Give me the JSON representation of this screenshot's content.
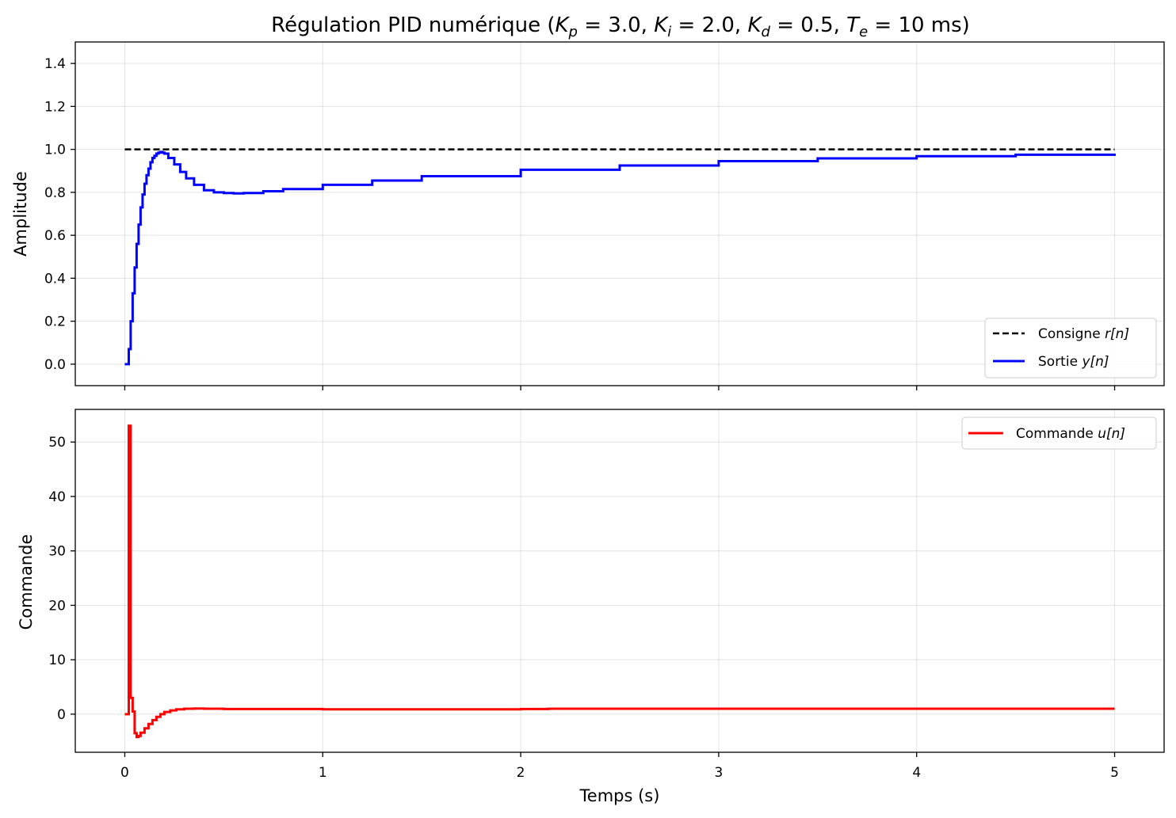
{
  "title": "Régulation PID numérique (K_p = 3.0, K_i = 2.0, K_d = 0.5, T_e = 10 ms)",
  "title_parts": {
    "prefix": "Régulation PID numérique (",
    "kp_sym": "K",
    "kp_sub": "p",
    "kp_val": " = 3.0, ",
    "ki_sym": "K",
    "ki_sub": "i",
    "ki_val": " = 2.0, ",
    "kd_sym": "K",
    "kd_sub": "d",
    "kd_val": " = 0.5, ",
    "te_sym": "T",
    "te_sub": "e",
    "te_val": " = 10 ms)"
  },
  "chart_data": [
    {
      "type": "line",
      "ylabel": "Amplitude",
      "xlim": [
        -0.25,
        5.25
      ],
      "ylim": [
        -0.1,
        1.5
      ],
      "xticks": [
        0,
        1,
        2,
        3,
        4,
        5
      ],
      "yticks": [
        "0.0",
        "0.2",
        "0.4",
        "0.6",
        "0.8",
        "1.0",
        "1.2",
        "1.4"
      ],
      "grid": true,
      "legend_position": "lower-right",
      "series": [
        {
          "name": "Consigne r[n]",
          "legend_text": "Consigne ",
          "legend_math": "r[n]",
          "color": "#000000",
          "style": "dashed",
          "x": [
            0,
            5
          ],
          "y": [
            1.0,
            1.0
          ]
        },
        {
          "name": "Sortie y[n]",
          "legend_text": "Sortie ",
          "legend_math": "y[n]",
          "color": "#0000ff",
          "style": "step",
          "x": [
            0,
            0.02,
            0.03,
            0.04,
            0.05,
            0.06,
            0.07,
            0.08,
            0.09,
            0.1,
            0.11,
            0.12,
            0.13,
            0.14,
            0.15,
            0.16,
            0.17,
            0.18,
            0.19,
            0.2,
            0.22,
            0.25,
            0.28,
            0.31,
            0.35,
            0.4,
            0.45,
            0.5,
            0.55,
            0.6,
            0.7,
            0.8,
            1.0,
            1.25,
            1.5,
            2.0,
            2.5,
            3.0,
            3.5,
            4.0,
            4.5,
            5.0
          ],
          "y": [
            0,
            0.07,
            0.2,
            0.33,
            0.45,
            0.56,
            0.65,
            0.73,
            0.79,
            0.84,
            0.88,
            0.91,
            0.94,
            0.96,
            0.97,
            0.98,
            0.985,
            0.988,
            0.985,
            0.98,
            0.96,
            0.93,
            0.895,
            0.865,
            0.835,
            0.81,
            0.8,
            0.797,
            0.795,
            0.797,
            0.805,
            0.815,
            0.835,
            0.855,
            0.875,
            0.905,
            0.925,
            0.945,
            0.958,
            0.968,
            0.975,
            0.98
          ]
        }
      ]
    },
    {
      "type": "line",
      "xlabel": "Temps (s)",
      "ylabel": "Commande",
      "xlim": [
        -0.25,
        5.25
      ],
      "ylim": [
        -7,
        56
      ],
      "xticks": [
        0,
        1,
        2,
        3,
        4,
        5
      ],
      "yticks": [
        "0",
        "10",
        "20",
        "30",
        "40",
        "50"
      ],
      "grid": true,
      "legend_position": "upper-right",
      "series": [
        {
          "name": "Commande u[n]",
          "legend_text": "Commande ",
          "legend_math": "u[n]",
          "color": "#ff0000",
          "style": "step",
          "x": [
            0,
            0.02,
            0.03,
            0.04,
            0.05,
            0.06,
            0.07,
            0.08,
            0.1,
            0.12,
            0.14,
            0.16,
            0.18,
            0.2,
            0.23,
            0.26,
            0.3,
            0.35,
            0.4,
            0.5,
            1.0,
            1.5,
            2.0,
            2.14,
            3.0,
            4.0,
            5.0
          ],
          "y": [
            0,
            53,
            3,
            0.5,
            -3.5,
            -4.2,
            -4.0,
            -3.4,
            -2.6,
            -1.8,
            -1.1,
            -0.5,
            0.0,
            0.4,
            0.7,
            0.9,
            1.0,
            1.05,
            1.0,
            0.95,
            0.9,
            0.9,
            0.95,
            1.0,
            1.0,
            1.0,
            1.0
          ]
        }
      ]
    }
  ]
}
